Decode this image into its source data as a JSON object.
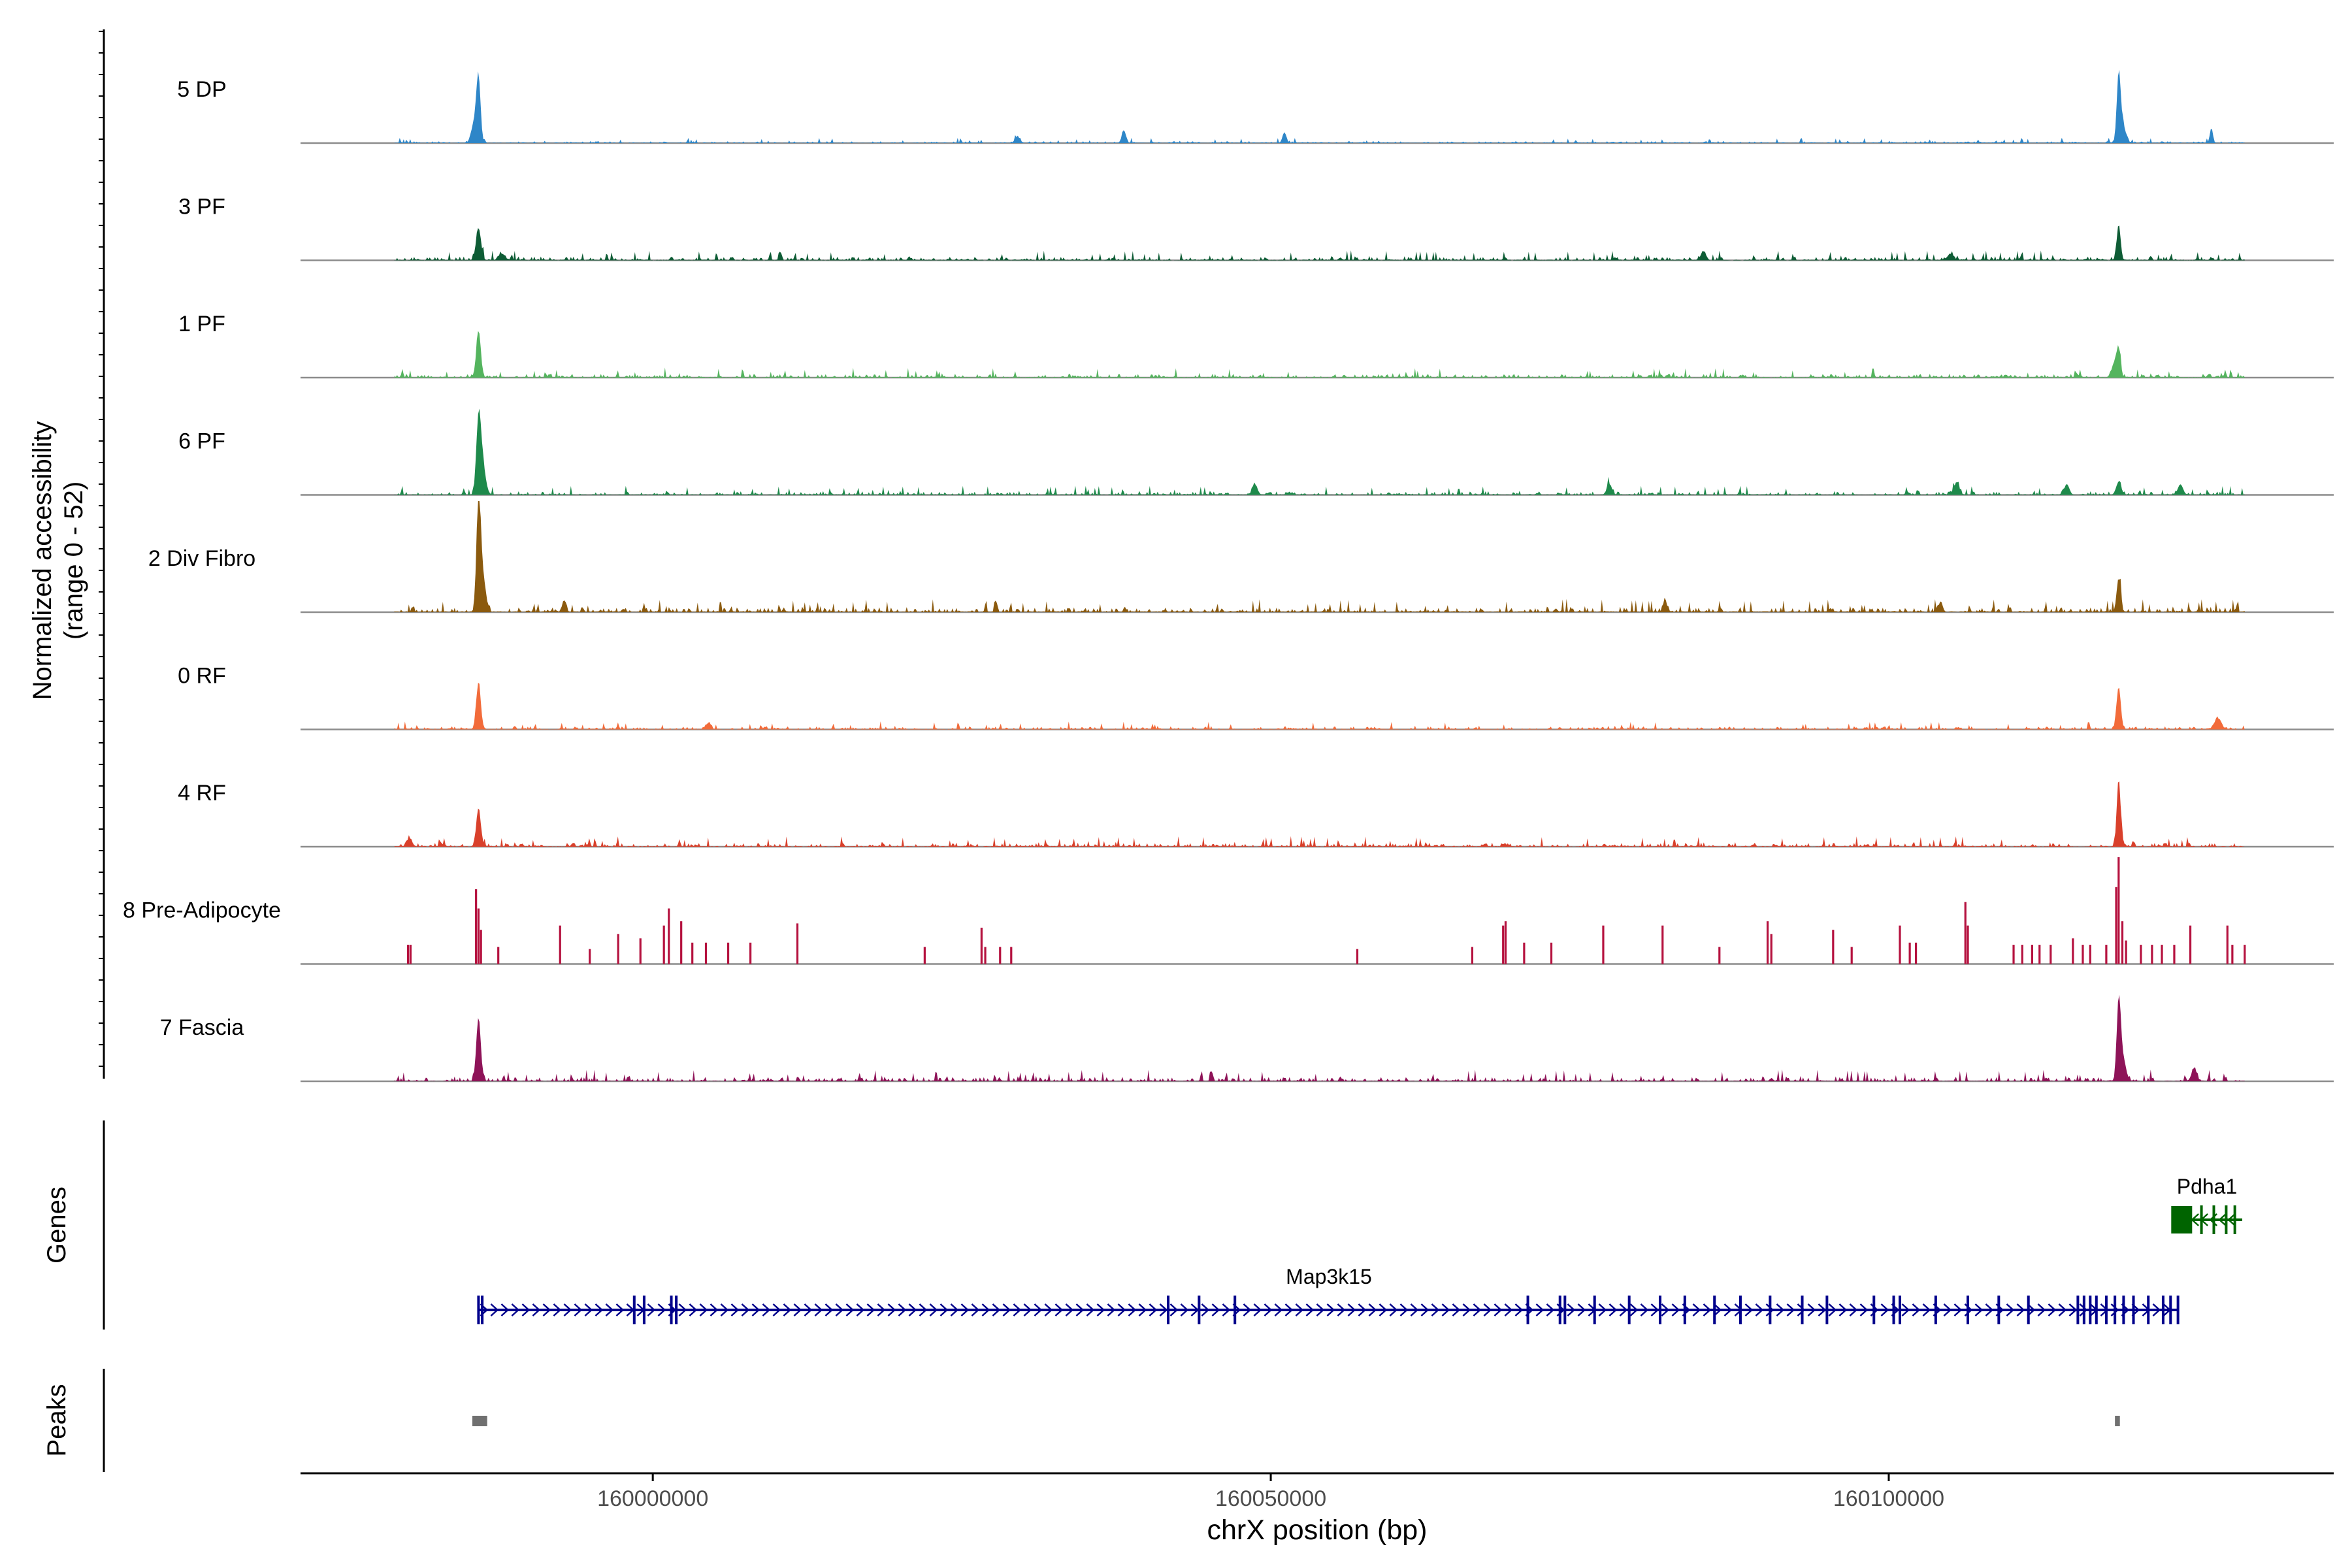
{
  "chart_data": {
    "type": "area",
    "title": "",
    "ylabel": "Normalized accessibility",
    "ylabel_range": "(range 0 - 52)",
    "ylim": [
      0,
      52
    ],
    "xlabel": "chrX position (bp)",
    "xlim": [
      159971500,
      160136000
    ],
    "x_ticks": [
      160000000,
      160050000,
      160100000
    ],
    "x_tick_labels": [
      "160000000",
      "160050000",
      "160100000"
    ],
    "series": [
      {
        "name": "5 DP",
        "color": "#2E86C8",
        "baseline": 0.6,
        "noise": 0.8,
        "peaks": [
          [
            159985900,
            28,
            160
          ],
          [
            159985600,
            10,
            250
          ],
          [
            160118600,
            30,
            150
          ],
          [
            160118900,
            9,
            250
          ],
          [
            160126100,
            7,
            120
          ],
          [
            160038100,
            6,
            150
          ],
          [
            160051100,
            5,
            150
          ],
          [
            160029500,
            3,
            200
          ]
        ]
      },
      {
        "name": "3 PF",
        "color": "#0E5C35",
        "baseline": 1.2,
        "noise": 1.5,
        "peaks": [
          [
            159985900,
            15,
            200
          ],
          [
            160118600,
            17,
            150
          ],
          [
            160085000,
            4,
            200
          ],
          [
            159987800,
            3,
            250
          ],
          [
            160105000,
            3,
            250
          ]
        ]
      },
      {
        "name": "1 PF",
        "color": "#54B45E",
        "baseline": 1.2,
        "noise": 1.5,
        "peaks": [
          [
            159985900,
            22,
            180
          ],
          [
            160118600,
            11,
            150
          ],
          [
            160118300,
            7,
            250
          ]
        ]
      },
      {
        "name": "6 PF",
        "color": "#1E8A4B",
        "baseline": 0.8,
        "noise": 1.4,
        "peaks": [
          [
            159985900,
            32,
            180
          ],
          [
            159986200,
            15,
            250
          ],
          [
            160048700,
            5,
            200
          ],
          [
            160077400,
            5,
            200
          ],
          [
            160105500,
            6,
            200
          ],
          [
            160114400,
            5,
            200
          ],
          [
            160118600,
            6,
            200
          ],
          [
            160123600,
            5,
            200
          ]
        ]
      },
      {
        "name": "2 Div Fibro",
        "color": "#8B5A0E",
        "baseline": 1.5,
        "noise": 2.0,
        "peaks": [
          [
            159985900,
            52,
            160
          ],
          [
            159986200,
            18,
            250
          ],
          [
            159992800,
            5,
            150
          ],
          [
            160118600,
            16,
            160
          ],
          [
            160081900,
            6,
            150
          ],
          [
            160104200,
            5,
            150
          ]
        ]
      },
      {
        "name": "0 RF",
        "color": "#F26B3A",
        "baseline": 1.0,
        "noise": 1.2,
        "peaks": [
          [
            159985900,
            22,
            180
          ],
          [
            160118600,
            20,
            170
          ],
          [
            160126600,
            5,
            250
          ],
          [
            160004500,
            3,
            200
          ]
        ]
      },
      {
        "name": "4 RF",
        "color": "#D9402B",
        "baseline": 1.0,
        "noise": 1.6,
        "peaks": [
          [
            159985900,
            18,
            180
          ],
          [
            160118600,
            32,
            150
          ],
          [
            159980300,
            4,
            200
          ]
        ]
      },
      {
        "name": "8 Pre-Adipocyte",
        "color": "#B5123F",
        "baseline": 0,
        "noise": 0,
        "spikes": [
          [
            159980200,
            9
          ],
          [
            159980400,
            9
          ],
          [
            159985700,
            35
          ],
          [
            159985900,
            26
          ],
          [
            159986100,
            16
          ],
          [
            159987500,
            8
          ],
          [
            159992500,
            18
          ],
          [
            159994900,
            7
          ],
          [
            159997200,
            14
          ],
          [
            159999000,
            12
          ],
          [
            160000900,
            18
          ],
          [
            160001300,
            26
          ],
          [
            160002300,
            20
          ],
          [
            160003200,
            10
          ],
          [
            160004300,
            10
          ],
          [
            160006100,
            10
          ],
          [
            160007900,
            10
          ],
          [
            160011700,
            19
          ],
          [
            160022000,
            8
          ],
          [
            160026600,
            17
          ],
          [
            160026900,
            8
          ],
          [
            160028100,
            8
          ],
          [
            160029000,
            8
          ],
          [
            160057000,
            7
          ],
          [
            160066300,
            8
          ],
          [
            160068800,
            18
          ],
          [
            160069000,
            20
          ],
          [
            160070500,
            10
          ],
          [
            160072700,
            10
          ],
          [
            160076900,
            18
          ],
          [
            160081700,
            18
          ],
          [
            160086300,
            8
          ],
          [
            160090200,
            20
          ],
          [
            160090500,
            14
          ],
          [
            160095500,
            16
          ],
          [
            160097000,
            8
          ],
          [
            160100900,
            18
          ],
          [
            160101700,
            10
          ],
          [
            160102200,
            10
          ],
          [
            160106200,
            29
          ],
          [
            160106400,
            18
          ],
          [
            160110100,
            9
          ],
          [
            160110800,
            9
          ],
          [
            160111600,
            9
          ],
          [
            160112200,
            9
          ],
          [
            160113100,
            9
          ],
          [
            160114900,
            12
          ],
          [
            160115700,
            9
          ],
          [
            160116300,
            9
          ],
          [
            160117600,
            9
          ],
          [
            160118400,
            36
          ],
          [
            160118600,
            50
          ],
          [
            160118900,
            20
          ],
          [
            160119200,
            11
          ],
          [
            160120400,
            9
          ],
          [
            160121300,
            9
          ],
          [
            160122100,
            9
          ],
          [
            160123100,
            9
          ],
          [
            160124400,
            18
          ],
          [
            160127400,
            18
          ],
          [
            160127800,
            9
          ],
          [
            160128800,
            9
          ]
        ]
      },
      {
        "name": "7 Fascia",
        "color": "#8E1358",
        "baseline": 1.2,
        "noise": 1.8,
        "peaks": [
          [
            159985900,
            30,
            180
          ],
          [
            160118600,
            35,
            150
          ],
          [
            160118900,
            12,
            250
          ],
          [
            160124700,
            6,
            200
          ]
        ]
      }
    ],
    "genes": [
      {
        "name": "Map3k15",
        "color": "#00008B",
        "start": 159985900,
        "end": 160123400,
        "strand": "+",
        "exons": [
          159985900,
          159986200,
          159998500,
          159999300,
          160001500,
          160001900,
          160041700,
          160044200,
          160047100,
          160070800,
          160073400,
          160073800,
          160076200,
          160079000,
          160081500,
          160083500,
          160085900,
          160088000,
          160090400,
          160093000,
          160095000,
          160098800,
          160100400,
          160100900,
          160103800,
          160106400,
          160108900,
          160111300,
          160115300,
          160115800,
          160116300,
          160116800,
          160117600,
          160118300,
          160119000,
          160119800,
          160121000,
          160122200,
          160122800,
          160123400
        ]
      },
      {
        "name": "Pdha1",
        "color": "#006400",
        "start": 160122900,
        "end": 160128600,
        "strand": "-",
        "exons": [
          160123700,
          160125300,
          160126300,
          160127300,
          160128000
        ]
      }
    ],
    "genes_label": "Genes",
    "peaks_label": "Peaks",
    "peak_regions": [
      [
        159985400,
        159986600
      ],
      [
        160118300,
        160118700
      ]
    ]
  }
}
